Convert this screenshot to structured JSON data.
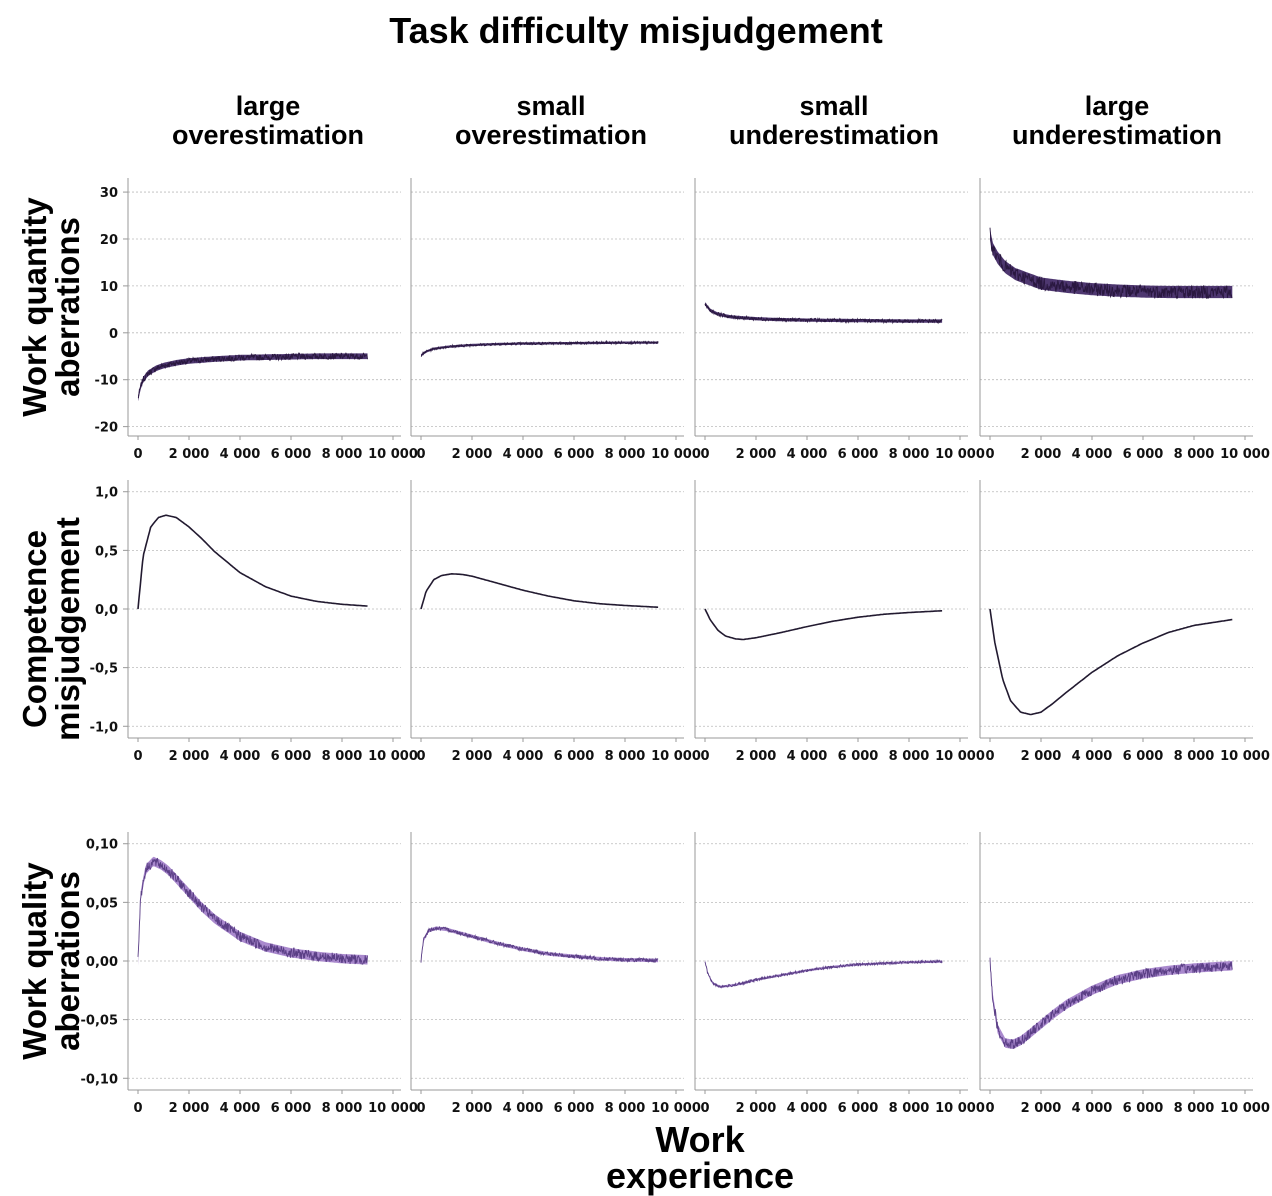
{
  "title": "Task difficulty misjudgement",
  "x_axis_label": "Work\nexperience",
  "columns": [
    {
      "label": "large\noverestimation"
    },
    {
      "label": "small\noverestimation"
    },
    {
      "label": "small\nunderestimation"
    },
    {
      "label": "large\nunderestimation"
    }
  ],
  "rows": [
    {
      "label": "Work quantity\naberrations"
    },
    {
      "label": "Competence\nmisjudgement"
    },
    {
      "label": "Work quality\naberrations"
    }
  ],
  "colors": {
    "quantity_line": "#2a1840",
    "quantity_fill": "#3b2160",
    "competence_line": "#221a30",
    "quality_line": "#5b3f86",
    "quality_fill": "#a07cc8",
    "grid": "#bbbbbb",
    "axis": "#999999"
  },
  "chart_data": [
    {
      "type": "line",
      "title": "Work quantity aberrations",
      "xlim": [
        0,
        10000
      ],
      "ylim": [
        -22,
        33
      ],
      "x_ticks": [
        "0",
        "2 000",
        "4 000",
        "6 000",
        "8 000",
        "10 000"
      ],
      "y_ticks": [
        {
          "v": 30,
          "t": "30"
        },
        {
          "v": 20,
          "t": "20"
        },
        {
          "v": 10,
          "t": "10"
        },
        {
          "v": 0,
          "t": "0"
        },
        {
          "v": -10,
          "t": "-10"
        },
        {
          "v": -20,
          "t": "-20"
        }
      ],
      "grid": true,
      "series": [
        {
          "panel": "large overestimation",
          "x": [
            0,
            100,
            200,
            400,
            700,
            1000,
            1500,
            2000,
            3000,
            4000,
            5000,
            6000,
            7000,
            8000,
            9000
          ],
          "y": [
            -14,
            -11.5,
            -10,
            -8.6,
            -7.6,
            -7,
            -6.4,
            -6,
            -5.6,
            -5.3,
            -5.2,
            -5.1,
            -5,
            -5,
            -5
          ],
          "band": 1.2
        },
        {
          "panel": "small overestimation",
          "x": [
            0,
            200,
            500,
            1000,
            2000,
            3000,
            4000,
            6000,
            8000,
            9300
          ],
          "y": [
            -4.8,
            -4,
            -3.4,
            -3,
            -2.6,
            -2.4,
            -2.3,
            -2.2,
            -2.1,
            -2.1
          ],
          "band": 0.5
        },
        {
          "panel": "small underestimation",
          "x": [
            0,
            200,
            500,
            1000,
            2000,
            3000,
            4000,
            6000,
            8000,
            9300
          ],
          "y": [
            6.2,
            4.8,
            4,
            3.4,
            3,
            2.8,
            2.7,
            2.6,
            2.5,
            2.5
          ],
          "band": 0.7
        },
        {
          "panel": "large underestimation",
          "x": [
            0,
            100,
            300,
            600,
            1000,
            1500,
            2000,
            3000,
            4000,
            5000,
            6000,
            7000,
            8000,
            9500
          ],
          "y": [
            21,
            18,
            16,
            14,
            12.5,
            11.5,
            10.5,
            9.8,
            9.3,
            9,
            8.8,
            8.7,
            8.7,
            8.7
          ],
          "band": 2.6
        }
      ]
    },
    {
      "type": "line",
      "title": "Competence misjudgement",
      "xlim": [
        0,
        10000
      ],
      "ylim": [
        -1.1,
        1.1
      ],
      "x_ticks": [
        "0",
        "2 000",
        "4 000",
        "6 000",
        "8 000",
        "10 000"
      ],
      "y_ticks": [
        {
          "v": 1,
          "t": "1,0"
        },
        {
          "v": 0.5,
          "t": "0,5"
        },
        {
          "v": 0,
          "t": "0,0"
        },
        {
          "v": -0.5,
          "t": "-0,5"
        },
        {
          "v": -1,
          "t": "-1,0"
        }
      ],
      "grid": true,
      "series": [
        {
          "panel": "large overestimation",
          "x": [
            0,
            200,
            500,
            800,
            1100,
            1500,
            2000,
            2500,
            3000,
            4000,
            5000,
            6000,
            7000,
            8000,
            9000
          ],
          "y": [
            0,
            0.45,
            0.7,
            0.78,
            0.8,
            0.78,
            0.7,
            0.6,
            0.49,
            0.31,
            0.19,
            0.11,
            0.065,
            0.04,
            0.025
          ]
        },
        {
          "panel": "small overestimation",
          "x": [
            0,
            200,
            500,
            800,
            1200,
            1600,
            2000,
            3000,
            4000,
            5000,
            6000,
            7000,
            8000,
            9300
          ],
          "y": [
            0,
            0.15,
            0.25,
            0.285,
            0.3,
            0.295,
            0.28,
            0.22,
            0.16,
            0.11,
            0.07,
            0.045,
            0.03,
            0.015
          ]
        },
        {
          "panel": "small underestimation",
          "x": [
            0,
            200,
            500,
            800,
            1200,
            1500,
            2000,
            3000,
            4000,
            5000,
            6000,
            7000,
            8000,
            9300
          ],
          "y": [
            0,
            -0.09,
            -0.18,
            -0.23,
            -0.255,
            -0.26,
            -0.245,
            -0.2,
            -0.15,
            -0.105,
            -0.07,
            -0.045,
            -0.03,
            -0.015
          ]
        },
        {
          "panel": "large underestimation",
          "x": [
            0,
            200,
            500,
            800,
            1200,
            1600,
            2000,
            2500,
            3000,
            4000,
            5000,
            6000,
            7000,
            8000,
            9500
          ],
          "y": [
            0,
            -0.3,
            -0.6,
            -0.78,
            -0.88,
            -0.9,
            -0.88,
            -0.8,
            -0.71,
            -0.54,
            -0.4,
            -0.29,
            -0.2,
            -0.14,
            -0.09
          ]
        }
      ]
    },
    {
      "type": "area",
      "title": "Work quality aberrations",
      "xlim": [
        0,
        10000
      ],
      "ylim": [
        -0.11,
        0.11
      ],
      "x_ticks": [
        "0",
        "2 000",
        "4 000",
        "6 000",
        "8 000",
        "10 000"
      ],
      "y_ticks": [
        {
          "v": 0.1,
          "t": "0,10"
        },
        {
          "v": 0.05,
          "t": "0,05"
        },
        {
          "v": 0,
          "t": "0,00"
        },
        {
          "v": -0.05,
          "t": "-0,05"
        },
        {
          "v": -0.1,
          "t": "-0,10"
        }
      ],
      "grid": true,
      "series": [
        {
          "panel": "large overestimation",
          "x": [
            0,
            100,
            300,
            600,
            900,
            1200,
            1500,
            2000,
            2500,
            3000,
            4000,
            5000,
            6000,
            7000,
            8000,
            9000
          ],
          "y": [
            0,
            0.055,
            0.078,
            0.085,
            0.082,
            0.077,
            0.07,
            0.058,
            0.046,
            0.036,
            0.021,
            0.012,
            0.007,
            0.004,
            0.002,
            0.001
          ],
          "band": 0.008
        },
        {
          "panel": "small overestimation",
          "x": [
            0,
            100,
            300,
            600,
            1000,
            1500,
            2000,
            3000,
            4000,
            5000,
            6000,
            7000,
            8000,
            9300
          ],
          "y": [
            0,
            0.018,
            0.026,
            0.028,
            0.027,
            0.024,
            0.021,
            0.015,
            0.01,
            0.006,
            0.004,
            0.002,
            0.001,
            0.0005
          ],
          "band": 0.003
        },
        {
          "panel": "small underestimation",
          "x": [
            0,
            100,
            300,
            600,
            1000,
            1500,
            2000,
            3000,
            4000,
            5000,
            6000,
            7000,
            8000,
            9300
          ],
          "y": [
            0,
            -0.01,
            -0.019,
            -0.022,
            -0.021,
            -0.019,
            -0.016,
            -0.012,
            -0.008,
            -0.005,
            -0.003,
            -0.002,
            -0.001,
            -0.0005
          ],
          "band": 0.002
        },
        {
          "panel": "large underestimation",
          "x": [
            0,
            100,
            300,
            600,
            900,
            1200,
            1500,
            2000,
            2500,
            3000,
            4000,
            5000,
            6000,
            7000,
            8000,
            9500
          ],
          "y": [
            0,
            -0.03,
            -0.058,
            -0.07,
            -0.071,
            -0.068,
            -0.063,
            -0.054,
            -0.045,
            -0.037,
            -0.025,
            -0.016,
            -0.011,
            -0.008,
            -0.006,
            -0.004
          ],
          "band": 0.008
        }
      ]
    }
  ]
}
